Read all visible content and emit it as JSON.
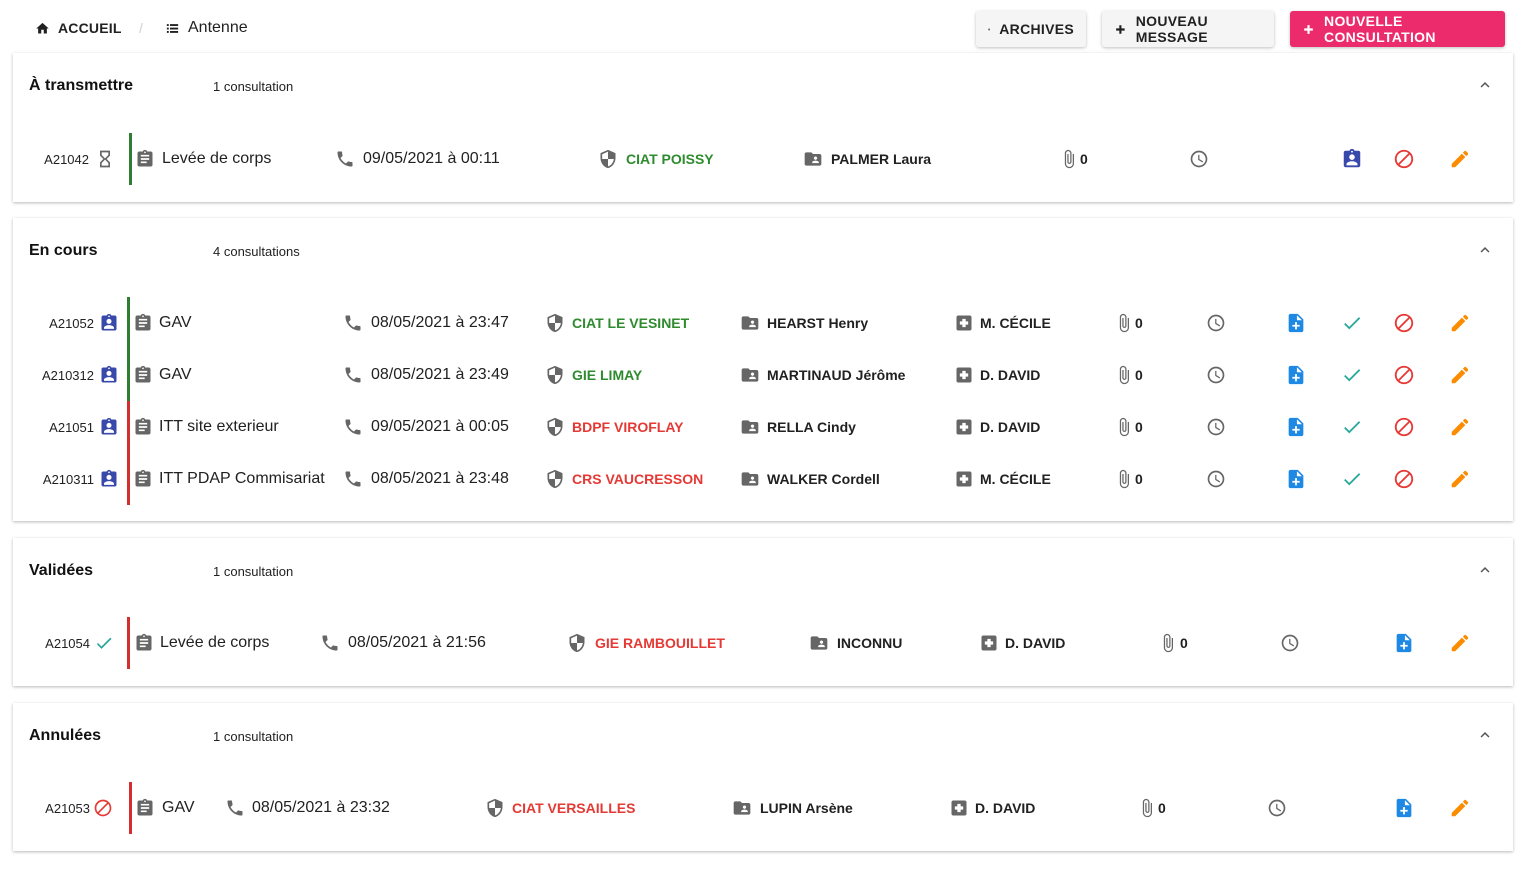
{
  "breadcrumb": {
    "home": "ACCUEIL",
    "separator": "/",
    "current": "Antenne"
  },
  "toolbar": {
    "archives": "ARCHIVES",
    "new_message": "NOUVEAU MESSAGE",
    "new_consultation": "NOUVELLE CONSULTATION"
  },
  "colors": {
    "accent": "#ec2b6c",
    "ok": "#2e8b2e",
    "ko": "#e53935",
    "indigo": "#3949ab",
    "blue": "#1e88e5",
    "teal": "#26a69a",
    "orange": "#fb8c00"
  },
  "sections": [
    {
      "title": "À transmettre",
      "count": "1 consultation",
      "rows": [
        {
          "id": "A21042",
          "type": "Levée de corps",
          "datetime": "09/05/2021 à 00:11",
          "service": "CIAT POISSY",
          "person": "PALMER Laura",
          "attachments": "0"
        }
      ]
    },
    {
      "title": "En cours",
      "count": "4 consultations",
      "rows": [
        {
          "id": "A21052",
          "type": "GAV",
          "datetime": "08/05/2021 à 23:47",
          "service": "CIAT LE VESINET",
          "person": "HEARST Henry",
          "doctor": "M. CÉCILE",
          "attachments": "0"
        },
        {
          "id": "A210312",
          "type": "GAV",
          "datetime": "08/05/2021 à 23:49",
          "service": "GIE LIMAY",
          "person": "MARTINAUD Jérôme",
          "doctor": "D. DAVID",
          "attachments": "0"
        },
        {
          "id": "A21051",
          "type": "ITT site exterieur",
          "datetime": "09/05/2021 à 00:05",
          "service": "BDPF VIROFLAY",
          "person": "RELLA Cindy",
          "doctor": "D. DAVID",
          "attachments": "0"
        },
        {
          "id": "A210311",
          "type": "ITT PDAP Commisariat",
          "datetime": "08/05/2021 à 23:48",
          "service": "CRS VAUCRESSON",
          "person": "WALKER Cordell",
          "doctor": "M. CÉCILE",
          "attachments": "0"
        }
      ]
    },
    {
      "title": "Validées",
      "count": "1 consultation",
      "rows": [
        {
          "id": "A21054",
          "type": "Levée de corps",
          "datetime": "08/05/2021 à 21:56",
          "service": "GIE RAMBOUILLET",
          "person": "INCONNU",
          "doctor": "D. DAVID",
          "attachments": "0"
        }
      ]
    },
    {
      "title": "Annulées",
      "count": "1 consultation",
      "rows": [
        {
          "id": "A21053",
          "type": "GAV",
          "datetime": "08/05/2021 à 23:32",
          "service": "CIAT VERSAILLES",
          "person": "LUPIN Arsène",
          "doctor": "D. DAVID",
          "attachments": "0"
        }
      ]
    }
  ]
}
